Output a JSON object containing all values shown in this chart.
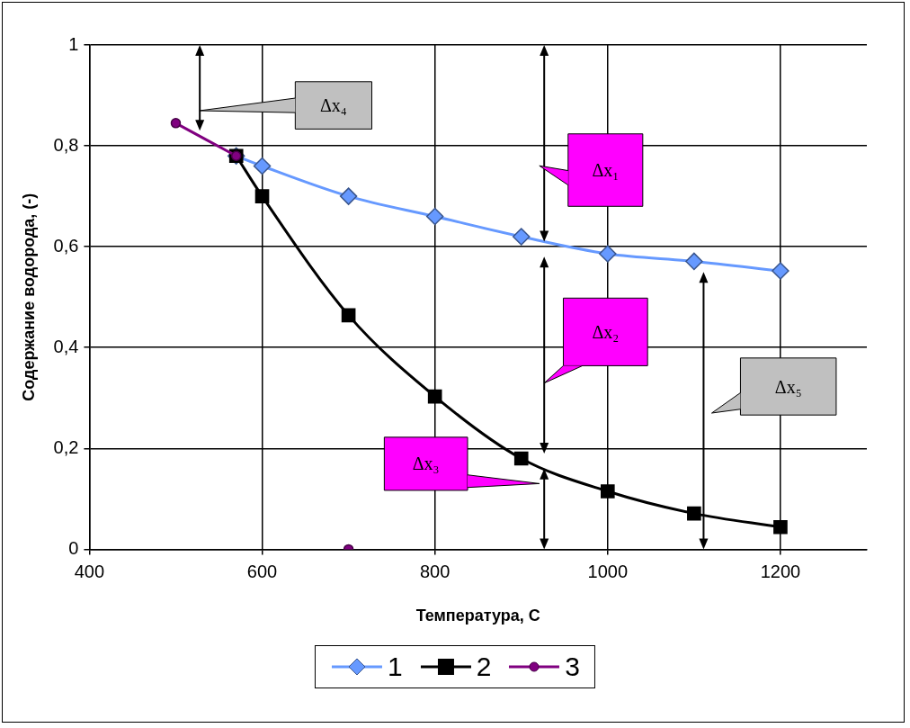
{
  "chart_data": {
    "type": "line",
    "xlabel": "Температура, С",
    "ylabel": "Содержание водорода, (-)",
    "xlim": [
      400,
      1300
    ],
    "xticks": [
      400,
      600,
      800,
      1000,
      1200
    ],
    "ylim": [
      0,
      1
    ],
    "yticks": [
      0,
      {
        "value": 0.2,
        "label": "0,2"
      },
      {
        "value": 0.4,
        "label": "0,4"
      },
      {
        "value": 0.6,
        "label": "0,6"
      },
      {
        "value": 0.8,
        "label": "0,8"
      },
      1
    ],
    "grid": true,
    "legend": "bottom",
    "series": [
      {
        "name": "1",
        "color": "#6699ff",
        "marker": "diamond",
        "x": [
          570,
          600,
          700,
          800,
          900,
          1000,
          1100,
          1200
        ],
        "values": [
          0.78,
          0.76,
          0.7,
          0.66,
          0.62,
          0.586,
          0.571,
          0.552
        ]
      },
      {
        "name": "2",
        "color": "#000000",
        "marker": "square",
        "x": [
          570,
          600,
          700,
          800,
          900,
          1000,
          1100,
          1200
        ],
        "values": [
          0.78,
          0.7,
          0.464,
          0.303,
          0.18,
          0.115,
          0.071,
          0.044
        ]
      },
      {
        "name": "3",
        "color": "#800080",
        "marker": "circle",
        "x": [
          500,
          570
        ],
        "values": [
          0.845,
          0.78
        ]
      },
      {
        "type": "scatter",
        "color": "#800080",
        "x": [
          700
        ],
        "values": [
          0
        ]
      }
    ],
    "annotations": [
      "Δx₄",
      "Δx₁",
      "Δx₂",
      "Δx₃",
      "Δx₅"
    ]
  }
}
